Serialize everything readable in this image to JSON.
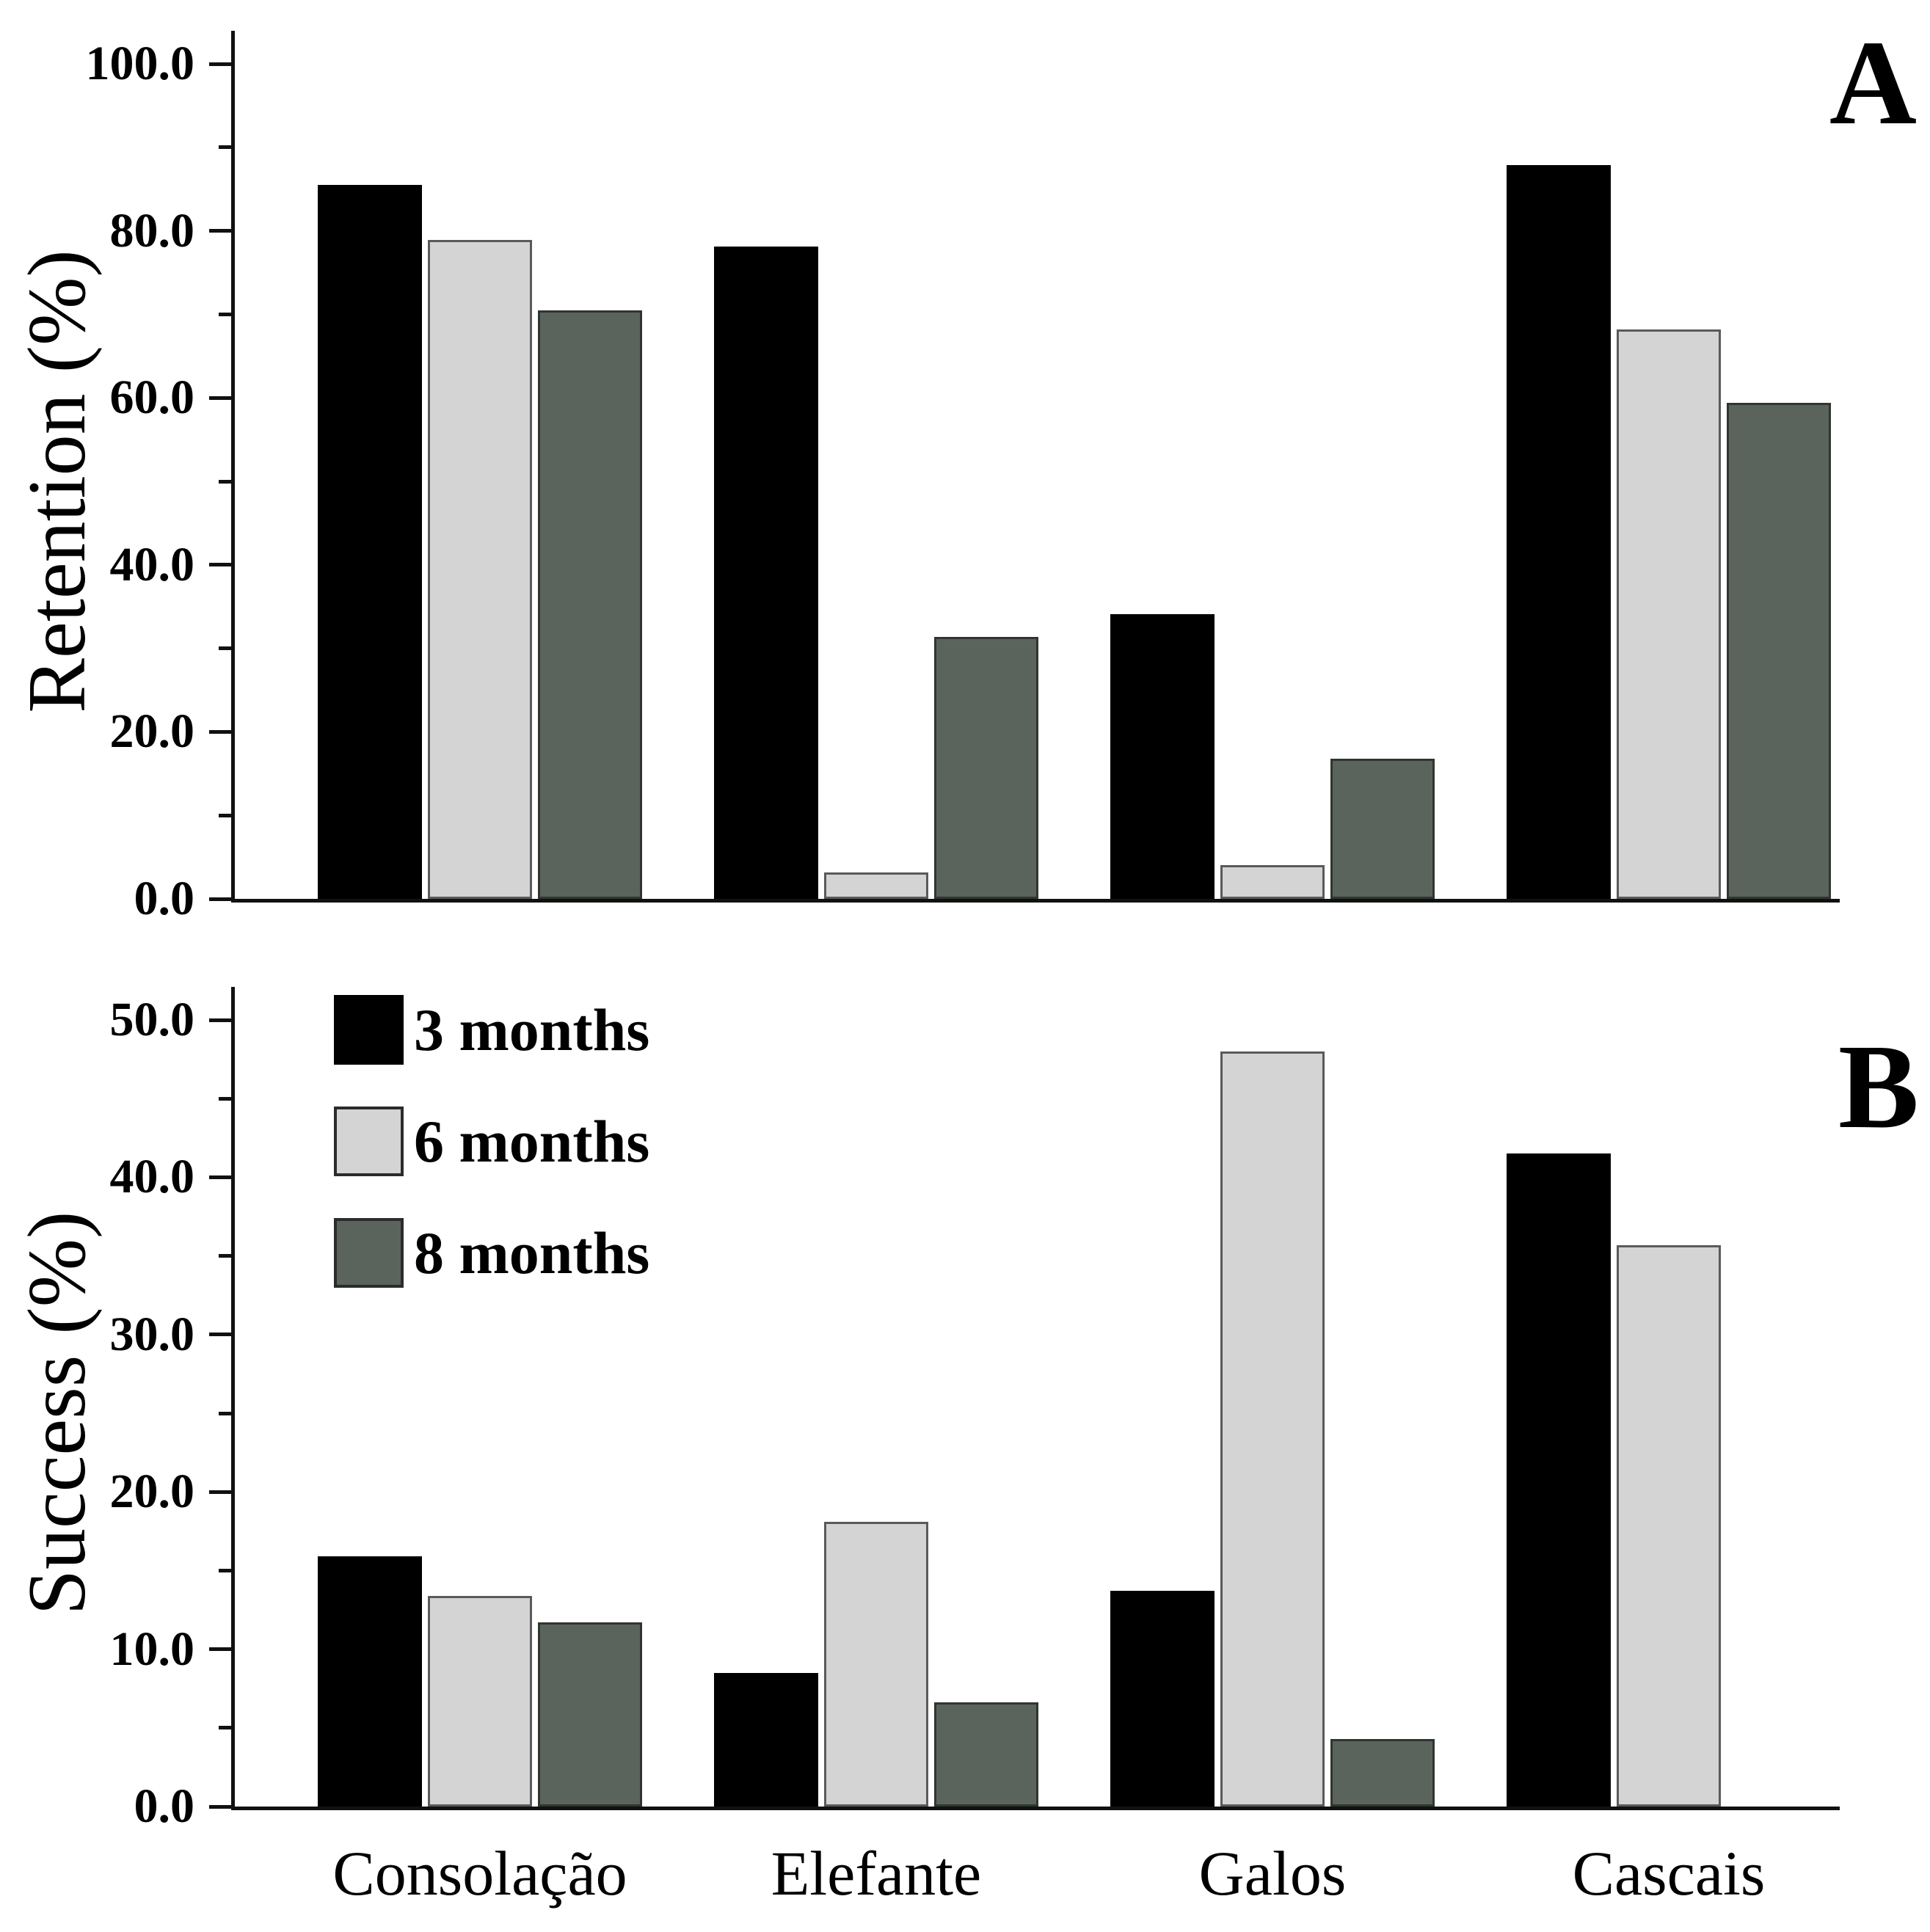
{
  "figure": {
    "background": "#ffffff",
    "panel_a_label": "A",
    "panel_b_label": "B"
  },
  "legend": {
    "entries": [
      "3 months",
      "6 months",
      "8 months"
    ],
    "position": "panel-B top-left"
  },
  "series_colors": {
    "3_months": "#000000",
    "6_months": "#d4d4d4",
    "8_months": "#5a645c"
  },
  "chart_data": [
    {
      "type": "bar",
      "panel_label": "A",
      "ylabel": "Retention (%)",
      "xlabel": "",
      "ylim": [
        0,
        100
      ],
      "grid": false,
      "show_x_labels": false,
      "categories": [
        "Consolação",
        "Elefante",
        "Galos",
        "Cascais"
      ],
      "yticks": [
        {
          "v": 0,
          "label": "0.0"
        },
        {
          "v": 20,
          "label": "20.0"
        },
        {
          "v": 40,
          "label": "40.0"
        },
        {
          "v": 60,
          "label": "60.0"
        },
        {
          "v": 80,
          "label": "80.0"
        },
        {
          "v": 100,
          "label": "100.0"
        }
      ],
      "yticks_minor": [
        10,
        30,
        50,
        70,
        90
      ],
      "series": [
        {
          "name": "3 months",
          "color": "#000000",
          "border": "#000000",
          "values": [
            85.5,
            78.1,
            34.1,
            87.9
          ]
        },
        {
          "name": "6 months",
          "color": "#d4d4d4",
          "border": "#5a5a5a",
          "values": [
            78.9,
            3.2,
            4.0,
            68.2
          ]
        },
        {
          "name": "8 months",
          "color": "#5a645c",
          "border": "#30362f",
          "values": [
            70.5,
            31.4,
            16.8,
            59.4
          ]
        }
      ]
    },
    {
      "type": "bar",
      "panel_label": "B",
      "ylabel": "Success (%)",
      "xlabel": "",
      "ylim": [
        0,
        50
      ],
      "grid": false,
      "show_x_labels": true,
      "legend": true,
      "categories": [
        "Consolação",
        "Elefante",
        "Galos",
        "Cascais"
      ],
      "yticks": [
        {
          "v": 0,
          "label": "0.0"
        },
        {
          "v": 10,
          "label": "10.0"
        },
        {
          "v": 20,
          "label": "20.0"
        },
        {
          "v": 30,
          "label": "30.0"
        },
        {
          "v": 40,
          "label": "40.0"
        },
        {
          "v": 50,
          "label": "50.0"
        }
      ],
      "yticks_minor": [
        5,
        15,
        25,
        35,
        45
      ],
      "series": [
        {
          "name": "3 months",
          "color": "#000000",
          "border": "#000000",
          "values": [
            15.9,
            8.5,
            13.7,
            41.5
          ]
        },
        {
          "name": "6 months",
          "color": "#d4d4d4",
          "border": "#5a5a5a",
          "values": [
            13.4,
            18.1,
            48.0,
            35.7
          ]
        },
        {
          "name": "8 months",
          "color": "#5a645c",
          "border": "#30362f",
          "values": [
            11.7,
            6.6,
            4.3,
            null
          ]
        }
      ]
    }
  ]
}
